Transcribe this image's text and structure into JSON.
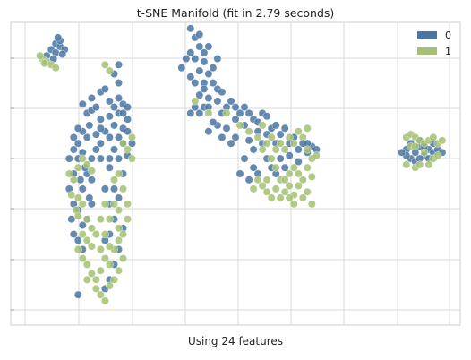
{
  "chart_data": {
    "type": "scatter",
    "title": "t-SNE Manifold (fit in 2.79 seconds)",
    "xlabel": "Using 24 features",
    "ylabel": "",
    "grid": true,
    "legend_position": "top-right",
    "xlim": [
      0,
      100
    ],
    "ylim": [
      0,
      100
    ],
    "series": [
      {
        "name": "0",
        "color": "#4a76a3",
        "points": [
          [
            10,
            93
          ],
          [
            11,
            92
          ],
          [
            11,
            94
          ],
          [
            9,
            91
          ],
          [
            10,
            90
          ],
          [
            12,
            91
          ],
          [
            10.5,
            95
          ],
          [
            8,
            89
          ],
          [
            11.5,
            89.5
          ],
          [
            9.5,
            88
          ],
          [
            17,
            70
          ],
          [
            16,
            73
          ],
          [
            18,
            71
          ],
          [
            17.5,
            66
          ],
          [
            16,
            64
          ],
          [
            15,
            60
          ],
          [
            17,
            62
          ],
          [
            18,
            75
          ],
          [
            19,
            72
          ],
          [
            20,
            77
          ],
          [
            21,
            78
          ],
          [
            20,
            68
          ],
          [
            15,
            55
          ],
          [
            14,
            50
          ],
          [
            15.5,
            48
          ],
          [
            13,
            45
          ],
          [
            14,
            40
          ],
          [
            15,
            38
          ],
          [
            13.5,
            35
          ],
          [
            14,
            30
          ],
          [
            15,
            28
          ],
          [
            16,
            25
          ],
          [
            16,
            45
          ],
          [
            17,
            50
          ],
          [
            18,
            55
          ],
          [
            19,
            58
          ],
          [
            18,
            40
          ],
          [
            17,
            35
          ],
          [
            16,
            33
          ],
          [
            17.5,
            42
          ],
          [
            16.5,
            52
          ],
          [
            19,
            63
          ],
          [
            20,
            60
          ],
          [
            13,
            55
          ],
          [
            14,
            58
          ],
          [
            16,
            57
          ],
          [
            18,
            48
          ],
          [
            15,
            65
          ],
          [
            14,
            62
          ],
          [
            15,
            10
          ],
          [
            22,
            74
          ],
          [
            23,
            72
          ],
          [
            24,
            70
          ],
          [
            23,
            66
          ],
          [
            21,
            64
          ],
          [
            22,
            62
          ],
          [
            24,
            75
          ],
          [
            25,
            73
          ],
          [
            24,
            80
          ],
          [
            23,
            83
          ],
          [
            24,
            86
          ],
          [
            22,
            69
          ],
          [
            25,
            65
          ],
          [
            26,
            64
          ],
          [
            25,
            60
          ],
          [
            23,
            58
          ],
          [
            24,
            55
          ],
          [
            22,
            52
          ],
          [
            26,
            56
          ],
          [
            25,
            50
          ],
          [
            23,
            45
          ],
          [
            22,
            40
          ],
          [
            24,
            42
          ],
          [
            23,
            35
          ],
          [
            25,
            32
          ],
          [
            22,
            30
          ],
          [
            21,
            28
          ],
          [
            24,
            25
          ],
          [
            23,
            20
          ],
          [
            22,
            15
          ],
          [
            21,
            12
          ],
          [
            20,
            65
          ],
          [
            26,
            68
          ],
          [
            27,
            60
          ],
          [
            25,
            70
          ],
          [
            26,
            72
          ],
          [
            22,
            55
          ],
          [
            24,
            62
          ],
          [
            20,
            55
          ],
          [
            21,
            45
          ],
          [
            40,
            98
          ],
          [
            41,
            95
          ],
          [
            42,
            92
          ],
          [
            40,
            90
          ],
          [
            39,
            88
          ],
          [
            38,
            85
          ],
          [
            41,
            88
          ],
          [
            43,
            87
          ],
          [
            42,
            84
          ],
          [
            40,
            82
          ],
          [
            41,
            80
          ],
          [
            43,
            80
          ],
          [
            44,
            83
          ],
          [
            45,
            85
          ],
          [
            43,
            90
          ],
          [
            42,
            96
          ],
          [
            44,
            92
          ],
          [
            46,
            88
          ],
          [
            45,
            80
          ],
          [
            46,
            78
          ],
          [
            47,
            77
          ],
          [
            44,
            75
          ],
          [
            43,
            78
          ],
          [
            42,
            76
          ],
          [
            41,
            72
          ],
          [
            40,
            70
          ],
          [
            42,
            70
          ],
          [
            43,
            72
          ],
          [
            44,
            72
          ],
          [
            46,
            74
          ],
          [
            47,
            70
          ],
          [
            48,
            72
          ],
          [
            49,
            74
          ],
          [
            50,
            72
          ],
          [
            51,
            70
          ],
          [
            52,
            72
          ],
          [
            53,
            70
          ],
          [
            54,
            68
          ],
          [
            55,
            67
          ],
          [
            56,
            70
          ],
          [
            57,
            69
          ],
          [
            58,
            65
          ],
          [
            59,
            66
          ],
          [
            60,
            63
          ],
          [
            61,
            65
          ],
          [
            62,
            60
          ],
          [
            63,
            62
          ],
          [
            64,
            58
          ],
          [
            65,
            60
          ],
          [
            66,
            57
          ],
          [
            67,
            59
          ],
          [
            68,
            58
          ],
          [
            55,
            64
          ],
          [
            52,
            66
          ],
          [
            50,
            68
          ],
          [
            48,
            65
          ],
          [
            46,
            66
          ],
          [
            44,
            64
          ],
          [
            45,
            67
          ],
          [
            56,
            60
          ],
          [
            57,
            55
          ],
          [
            58,
            52
          ],
          [
            59,
            50
          ],
          [
            55,
            50
          ],
          [
            54,
            52
          ],
          [
            53,
            48
          ],
          [
            52,
            55
          ],
          [
            51,
            50
          ],
          [
            60,
            55
          ],
          [
            61,
            52
          ],
          [
            57,
            63
          ],
          [
            59,
            60
          ],
          [
            54,
            58
          ],
          [
            50,
            62
          ],
          [
            49,
            60
          ],
          [
            53,
            61
          ],
          [
            47,
            62
          ],
          [
            62,
            56
          ],
          [
            64,
            54
          ],
          [
            66,
            60
          ],
          [
            88,
            58
          ],
          [
            89,
            60
          ],
          [
            90,
            57
          ],
          [
            91,
            59
          ],
          [
            92,
            56
          ],
          [
            93,
            58
          ],
          [
            94,
            57
          ],
          [
            89,
            55
          ],
          [
            90,
            54
          ],
          [
            91,
            55
          ],
          [
            88,
            56
          ],
          [
            92,
            59
          ],
          [
            93,
            55
          ],
          [
            87,
            57
          ],
          [
            95,
            58
          ],
          [
            91,
            61
          ],
          [
            94,
            60
          ],
          [
            96,
            57
          ]
        ]
      },
      {
        "name": "1",
        "color": "#a4c173",
        "points": [
          [
            7,
            88
          ],
          [
            8,
            87
          ],
          [
            9,
            86
          ],
          [
            7.5,
            86.5
          ],
          [
            10,
            85
          ],
          [
            6.5,
            89
          ],
          [
            21,
            86
          ],
          [
            22,
            84
          ],
          [
            16,
            55
          ],
          [
            17,
            53
          ],
          [
            18,
            51
          ],
          [
            15,
            52
          ],
          [
            14,
            48
          ],
          [
            13,
            50
          ],
          [
            13.5,
            43
          ],
          [
            14.5,
            38
          ],
          [
            15,
            36
          ],
          [
            16,
            30
          ],
          [
            17,
            28
          ],
          [
            18,
            26
          ],
          [
            17,
            20
          ],
          [
            18,
            17
          ],
          [
            19,
            15
          ],
          [
            20,
            18
          ],
          [
            21,
            22
          ],
          [
            20,
            25
          ],
          [
            19,
            30
          ],
          [
            18,
            32
          ],
          [
            17,
            35
          ],
          [
            16,
            22
          ],
          [
            15,
            25
          ],
          [
            17,
            15
          ],
          [
            19,
            12
          ],
          [
            20,
            10
          ],
          [
            21,
            8
          ],
          [
            22,
            20
          ],
          [
            23,
            25
          ],
          [
            24,
            28
          ],
          [
            25,
            30
          ],
          [
            26,
            35
          ],
          [
            24,
            38
          ],
          [
            22,
            35
          ],
          [
            23,
            40
          ],
          [
            21,
            40
          ],
          [
            25,
            22
          ],
          [
            24,
            18
          ],
          [
            23,
            15
          ],
          [
            22,
            13
          ],
          [
            25,
            60
          ],
          [
            26,
            58
          ],
          [
            27,
            62
          ],
          [
            24,
            50
          ],
          [
            23,
            48
          ],
          [
            25,
            45
          ],
          [
            26,
            40
          ],
          [
            24,
            32
          ],
          [
            27,
            55
          ],
          [
            16,
            40
          ],
          [
            15,
            42
          ],
          [
            20,
            35
          ],
          [
            21,
            30
          ],
          [
            22,
            26
          ],
          [
            41,
            74
          ],
          [
            44,
            70
          ],
          [
            48,
            70
          ],
          [
            51,
            66
          ],
          [
            53,
            64
          ],
          [
            55,
            62
          ],
          [
            56,
            58
          ],
          [
            57,
            60
          ],
          [
            58,
            62
          ],
          [
            59,
            58
          ],
          [
            60,
            60
          ],
          [
            61,
            58
          ],
          [
            62,
            62
          ],
          [
            63,
            60
          ],
          [
            64,
            64
          ],
          [
            65,
            62
          ],
          [
            66,
            58
          ],
          [
            67,
            55
          ],
          [
            55,
            48
          ],
          [
            56,
            46
          ],
          [
            57,
            44
          ],
          [
            58,
            42
          ],
          [
            59,
            45
          ],
          [
            60,
            48
          ],
          [
            61,
            44
          ],
          [
            62,
            46
          ],
          [
            63,
            43
          ],
          [
            64,
            46
          ],
          [
            65,
            48
          ],
          [
            66,
            44
          ],
          [
            67,
            40
          ],
          [
            65,
            42
          ],
          [
            63,
            40
          ],
          [
            62,
            42
          ],
          [
            60,
            42
          ],
          [
            57,
            48
          ],
          [
            54,
            45
          ],
          [
            62,
            50
          ],
          [
            59,
            52
          ],
          [
            61,
            48
          ],
          [
            63,
            52
          ],
          [
            64,
            50
          ],
          [
            66,
            52
          ],
          [
            67,
            49
          ],
          [
            68,
            56
          ],
          [
            66,
            65
          ],
          [
            56,
            66
          ],
          [
            58,
            55
          ],
          [
            88,
            62
          ],
          [
            89,
            63
          ],
          [
            90,
            62
          ],
          [
            91,
            61
          ],
          [
            92,
            60
          ],
          [
            93,
            61
          ],
          [
            94,
            62
          ],
          [
            95,
            60
          ],
          [
            96,
            61
          ],
          [
            89,
            59
          ],
          [
            90,
            59
          ],
          [
            92,
            57
          ],
          [
            94,
            55
          ],
          [
            95,
            56
          ],
          [
            93,
            53
          ],
          [
            90,
            52
          ],
          [
            88,
            53
          ],
          [
            91,
            53
          ]
        ]
      }
    ]
  }
}
